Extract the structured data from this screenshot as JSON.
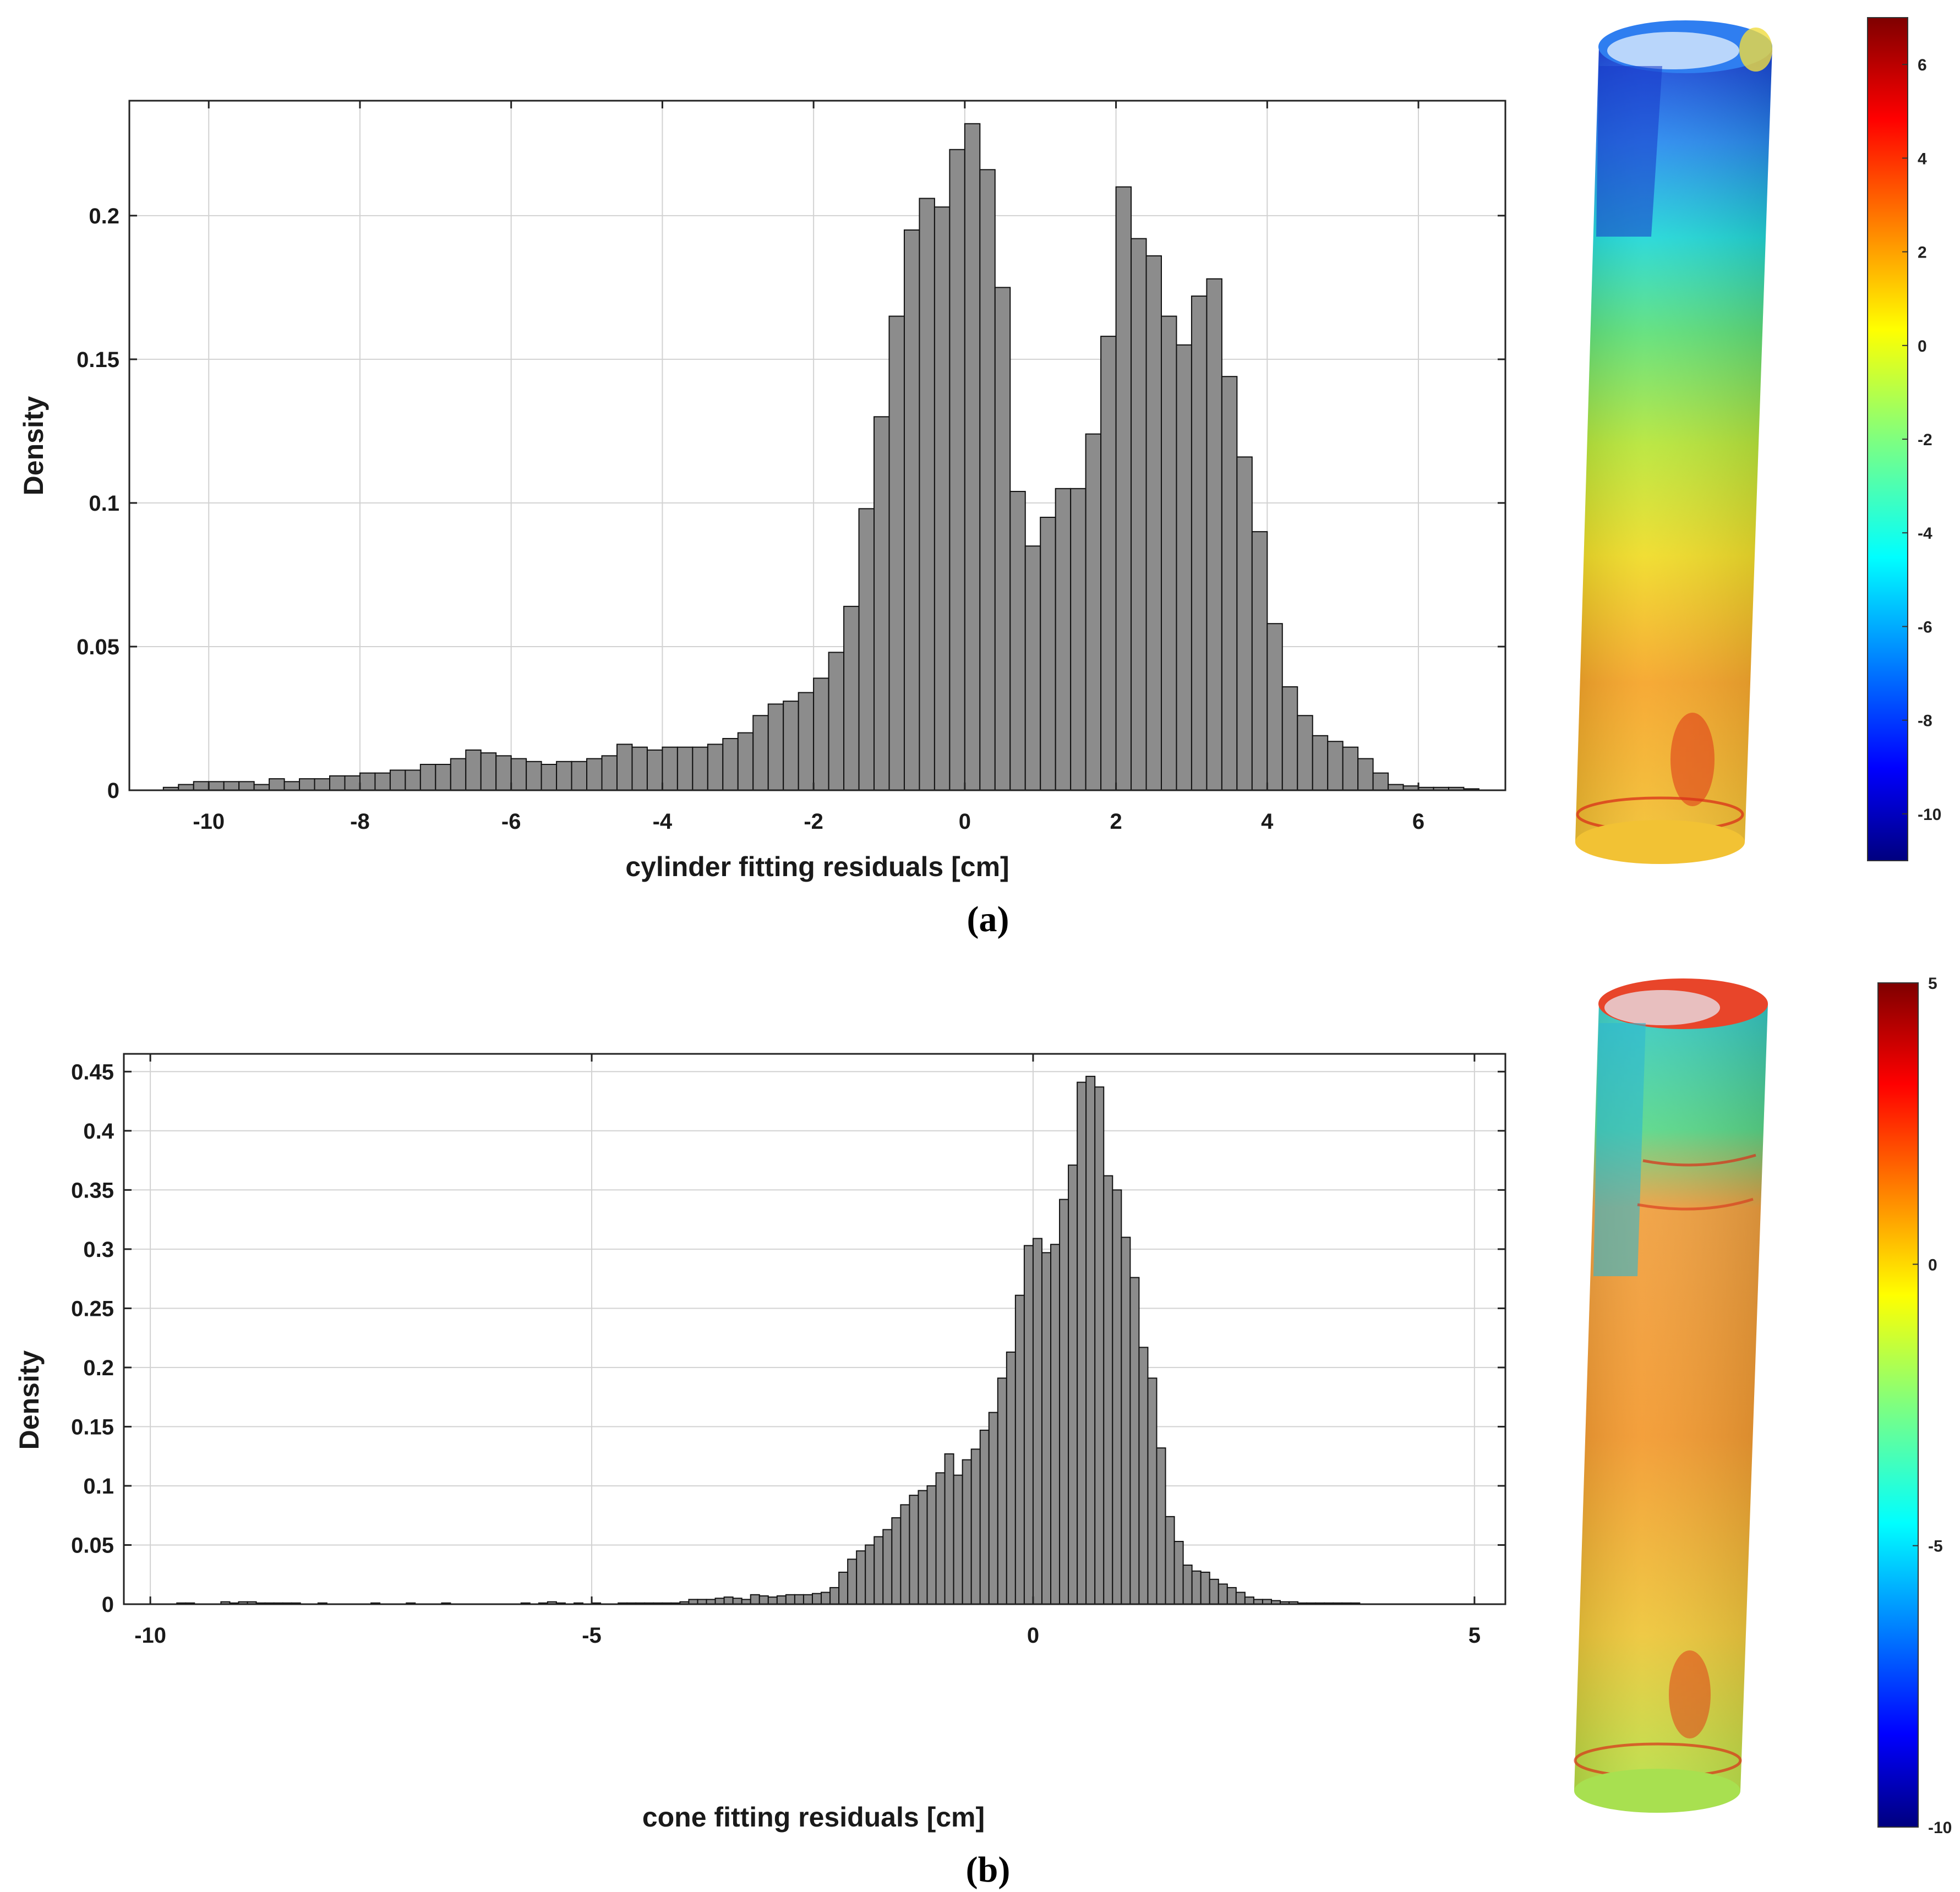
{
  "chart_data": [
    {
      "type": "bar",
      "panel_label": "(a)",
      "title": "",
      "xlabel": "cylinder fitting residuals [cm]",
      "ylabel": "Density",
      "xlim": [
        -11.05,
        7.15
      ],
      "ylim": [
        0,
        0.24
      ],
      "xticks": [
        -10,
        -8,
        -6,
        -4,
        -2,
        0,
        2,
        4,
        6
      ],
      "xtick_labels": [
        "-10",
        "-8",
        "-6",
        "-4",
        "-2",
        "0",
        "2",
        "4",
        "6"
      ],
      "yticks": [
        0,
        0.05,
        0.1,
        0.15,
        0.2
      ],
      "ytick_labels": [
        "0",
        "0.05",
        "0.1",
        "0.15",
        "0.2"
      ],
      "grid": true,
      "bin_start": -10.6,
      "bin_width": 0.2,
      "values": [
        0.001,
        0.002,
        0.003,
        0.003,
        0.003,
        0.003,
        0.002,
        0.004,
        0.003,
        0.004,
        0.004,
        0.005,
        0.005,
        0.006,
        0.006,
        0.007,
        0.007,
        0.009,
        0.009,
        0.011,
        0.014,
        0.013,
        0.012,
        0.011,
        0.01,
        0.009,
        0.01,
        0.01,
        0.011,
        0.012,
        0.016,
        0.015,
        0.014,
        0.015,
        0.015,
        0.015,
        0.016,
        0.018,
        0.02,
        0.026,
        0.03,
        0.031,
        0.034,
        0.039,
        0.048,
        0.064,
        0.098,
        0.13,
        0.165,
        0.195,
        0.206,
        0.203,
        0.223,
        0.232,
        0.216,
        0.175,
        0.104,
        0.085,
        0.095,
        0.105,
        0.105,
        0.124,
        0.158,
        0.21,
        0.192,
        0.186,
        0.165,
        0.155,
        0.172,
        0.178,
        0.144,
        0.116,
        0.09,
        0.058,
        0.036,
        0.026,
        0.019,
        0.017,
        0.015,
        0.011,
        0.006,
        0.002,
        0.0015,
        0.001,
        0.001,
        0.001,
        0.0005
      ]
    },
    {
      "type": "bar",
      "panel_label": "(b)",
      "title": "",
      "xlabel": "cone fitting residuals [cm]",
      "ylabel": "Density",
      "xlim": [
        -10.3,
        5.35
      ],
      "ylim": [
        0,
        0.465
      ],
      "xticks": [
        -10,
        -5,
        0,
        5
      ],
      "xtick_labels": [
        "-10",
        "-5",
        "0",
        "5"
      ],
      "yticks": [
        0,
        0.05,
        0.1,
        0.15,
        0.2,
        0.25,
        0.3,
        0.35,
        0.4,
        0.45
      ],
      "ytick_labels": [
        "0",
        "0.05",
        "0.1",
        "0.15",
        "0.2",
        "0.25",
        "0.3",
        "0.35",
        "0.4",
        "0.45"
      ],
      "grid": true,
      "bin_start": -9.7,
      "bin_width": 0.1,
      "values": [
        0.001,
        0.001,
        0,
        0,
        0,
        0.002,
        0.001,
        0.002,
        0.002,
        0.001,
        0.001,
        0.001,
        0.001,
        0.001,
        0,
        0,
        0.001,
        0,
        0,
        0,
        0,
        0,
        0.001,
        0,
        0,
        0,
        0.001,
        0,
        0,
        0,
        0.001,
        0,
        0,
        0,
        0,
        0,
        0,
        0,
        0,
        0.001,
        0,
        0.001,
        0.002,
        0.001,
        0,
        0.001,
        0,
        0.001,
        0,
        0,
        0.001,
        0.001,
        0.001,
        0.001,
        0.001,
        0.001,
        0.001,
        0.002,
        0.004,
        0.004,
        0.004,
        0.005,
        0.006,
        0.005,
        0.004,
        0.008,
        0.007,
        0.006,
        0.007,
        0.008,
        0.008,
        0.008,
        0.009,
        0.01,
        0.014,
        0.027,
        0.038,
        0.045,
        0.05,
        0.057,
        0.063,
        0.073,
        0.084,
        0.092,
        0.096,
        0.1,
        0.111,
        0.127,
        0.109,
        0.122,
        0.131,
        0.147,
        0.162,
        0.191,
        0.213,
        0.261,
        0.303,
        0.309,
        0.297,
        0.304,
        0.342,
        0.371,
        0.441,
        0.446,
        0.437,
        0.362,
        0.35,
        0.31,
        0.276,
        0.217,
        0.191,
        0.132,
        0.074,
        0.053,
        0.033,
        0.028,
        0.027,
        0.021,
        0.017,
        0.014,
        0.01,
        0.006,
        0.004,
        0.004,
        0.003,
        0.002,
        0.002,
        0.001,
        0.001,
        0.001,
        0.001,
        0.001,
        0.001,
        0.001
      ]
    }
  ],
  "colorbars": [
    {
      "tick_labels": [
        "6",
        "4",
        "2",
        "0",
        "-2",
        "-4",
        "-6",
        "-8",
        "-10"
      ],
      "ticks": [
        6,
        4,
        2,
        0,
        -2,
        -4,
        -6,
        -8,
        -10
      ],
      "range": [
        -11,
        7
      ]
    },
    {
      "tick_labels": [
        "5",
        "0",
        "-5",
        "-10"
      ],
      "ticks": [
        5,
        0,
        -5,
        -10
      ],
      "range": [
        -10,
        5
      ]
    }
  ],
  "point_cloud_renders": [
    {
      "name": "cylinder residual point cloud"
    },
    {
      "name": "cone residual point cloud"
    }
  ],
  "colors": {
    "bar_fill": "#8c8c8c",
    "bar_edge": "#111111",
    "grid": "#d2d2d2",
    "jet": [
      "#00007f",
      "#0000ff",
      "#007fff",
      "#00ffff",
      "#7fff7f",
      "#ffff00",
      "#ff7f00",
      "#ff0000",
      "#7f0000"
    ]
  }
}
